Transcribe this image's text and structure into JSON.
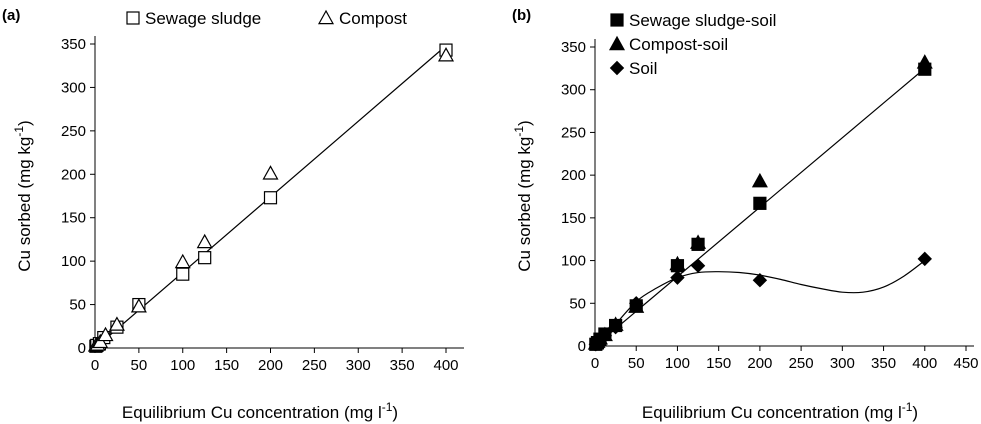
{
  "chart_data": [
    {
      "type": "scatter",
      "panel_label": "(a)",
      "xlabel_main": "Equilibrium Cu concentration (mg l",
      "xlabel_sup": "-1",
      "xlabel_tail": ")",
      "ylabel_main": "Cu sorbed (mg kg",
      "ylabel_sup": "-1",
      "ylabel_tail": ")",
      "xlim": [
        0,
        400
      ],
      "ylim": [
        0,
        350
      ],
      "xticks": [
        0,
        50,
        100,
        150,
        200,
        250,
        300,
        350,
        400
      ],
      "yticks": [
        0,
        50,
        100,
        150,
        200,
        250,
        300,
        350
      ],
      "legend_position": "top",
      "series": [
        {
          "name": "Sewage sludge",
          "marker": "square-open",
          "color": "#000000",
          "points": [
            [
              1,
              2
            ],
            [
              2,
              3
            ],
            [
              5,
              5
            ],
            [
              10,
              12
            ],
            [
              25,
              24
            ],
            [
              50,
              50
            ],
            [
              100,
              85
            ],
            [
              125,
              104
            ],
            [
              200,
              173
            ],
            [
              400,
              343
            ]
          ]
        },
        {
          "name": "Compost",
          "marker": "triangle-open",
          "color": "#000000",
          "points": [
            [
              1,
              3
            ],
            [
              3,
              4
            ],
            [
              6,
              7
            ],
            [
              12,
              15
            ],
            [
              25,
              27
            ],
            [
              50,
              48
            ],
            [
              100,
              99
            ],
            [
              125,
              122
            ],
            [
              200,
              201
            ],
            [
              400,
              337
            ]
          ]
        }
      ],
      "fits": [
        {
          "kind": "linear",
          "x": [
            0,
            400
          ],
          "y": [
            0,
            348
          ]
        }
      ]
    },
    {
      "type": "scatter",
      "panel_label": "(b)",
      "xlabel_main": "Equilibrium Cu concentration (mg l",
      "xlabel_sup": "-1",
      "xlabel_tail": ")",
      "ylabel_main": "Cu sorbed (mg kg",
      "ylabel_sup": "-1",
      "ylabel_tail": ")",
      "xlim": [
        0,
        450
      ],
      "ylim": [
        0,
        350
      ],
      "xticks": [
        0,
        50,
        100,
        150,
        200,
        250,
        300,
        350,
        400,
        450
      ],
      "yticks": [
        0,
        50,
        100,
        150,
        200,
        250,
        300,
        350
      ],
      "legend_position": "top-left",
      "series": [
        {
          "name": "Sewage sludge-soil",
          "marker": "square-filled",
          "color": "#000000",
          "points": [
            [
              1,
              2
            ],
            [
              3,
              4
            ],
            [
              6,
              8
            ],
            [
              12,
              14
            ],
            [
              25,
              24
            ],
            [
              50,
              47
            ],
            [
              100,
              94
            ],
            [
              125,
              119
            ],
            [
              200,
              167
            ],
            [
              400,
              324
            ]
          ]
        },
        {
          "name": "Compost-soil",
          "marker": "triangle-filled",
          "color": "#000000",
          "points": [
            [
              1,
              3
            ],
            [
              3,
              5
            ],
            [
              6,
              9
            ],
            [
              12,
              13
            ],
            [
              25,
              25
            ],
            [
              50,
              46
            ],
            [
              100,
              96
            ],
            [
              125,
              121
            ],
            [
              200,
              193
            ],
            [
              400,
              332
            ]
          ]
        },
        {
          "name": "Soil",
          "marker": "diamond-filled",
          "color": "#000000",
          "points": [
            [
              1,
              2
            ],
            [
              3,
              4
            ],
            [
              6,
              7
            ],
            [
              12,
              12
            ],
            [
              25,
              22
            ],
            [
              50,
              50
            ],
            [
              100,
              80
            ],
            [
              125,
              94
            ],
            [
              200,
              77
            ],
            [
              400,
              102
            ]
          ]
        }
      ],
      "fits": [
        {
          "kind": "linear",
          "x": [
            0,
            400
          ],
          "y": [
            0,
            325
          ]
        },
        {
          "kind": "curve",
          "points": [
            [
              0,
              0
            ],
            [
              20,
              20
            ],
            [
              50,
              52
            ],
            [
              75,
              68
            ],
            [
              100,
              80
            ],
            [
              125,
              86
            ],
            [
              150,
              87
            ],
            [
              175,
              86
            ],
            [
              200,
              83
            ],
            [
              225,
              78
            ],
            [
              250,
              72
            ],
            [
              275,
              67
            ],
            [
              300,
              63
            ],
            [
              325,
              63
            ],
            [
              350,
              69
            ],
            [
              375,
              82
            ],
            [
              400,
              100
            ]
          ]
        }
      ]
    }
  ]
}
